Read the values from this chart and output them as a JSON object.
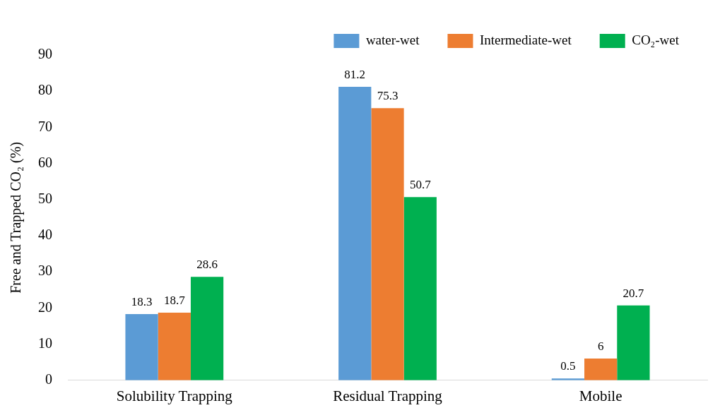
{
  "chart_data": {
    "type": "bar",
    "ylabel": "Free and Trapped CO₂ (%)",
    "categories": [
      "Solubility Trapping",
      "Residual Trapping",
      "Mobile"
    ],
    "series": [
      {
        "name": "water-wet",
        "color": "#5b9bd5",
        "values": [
          18.3,
          81.2,
          0.5
        ]
      },
      {
        "name": "Intermediate-wet",
        "color": "#ed7d31",
        "values": [
          18.7,
          75.3,
          6
        ]
      },
      {
        "name": "CO₂-wet",
        "color": "#00b050",
        "values": [
          28.6,
          50.7,
          20.7
        ]
      }
    ],
    "ylim": [
      0,
      90
    ],
    "yticks": [
      0,
      10,
      20,
      30,
      40,
      50,
      60,
      70,
      80,
      90
    ],
    "grid": false,
    "legend": "top",
    "data_labels": true
  }
}
